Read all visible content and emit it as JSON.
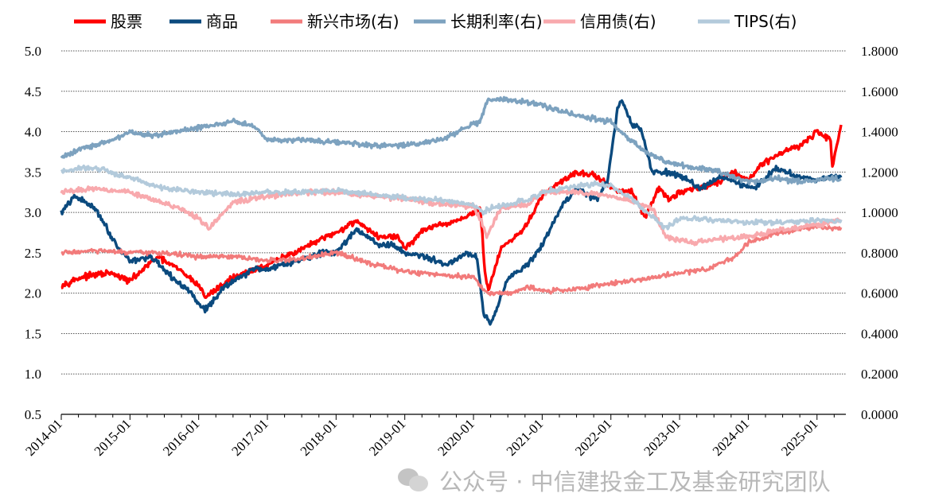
{
  "chart_data": {
    "type": "line",
    "title": "",
    "x_ticks": [
      "2014-01",
      "2015-01",
      "2016-01",
      "2017-01",
      "2018-01",
      "2019-01",
      "2020-01",
      "2021-01",
      "2022-01",
      "2023-01",
      "2024-01",
      "2025-01"
    ],
    "y_left": {
      "min": 0.5,
      "max": 5.0,
      "step": 0.5,
      "tick_labels": [
        "0.5",
        "1.0",
        "1.5",
        "2.0",
        "2.5",
        "3.0",
        "3.5",
        "4.0",
        "4.5",
        "5.0"
      ]
    },
    "y_right": {
      "min": 0.0,
      "max": 1.8,
      "step": 0.2,
      "tick_labels": [
        "0.0000",
        "0.2000",
        "0.4000",
        "0.6000",
        "0.8000",
        "1.0000",
        "1.2000",
        "1.4000",
        "1.6000",
        "1.8000"
      ]
    },
    "grid": "horizontal-dotted",
    "legend_position": "top",
    "series": [
      {
        "name": "股票",
        "axis": "left",
        "color": "#ff0000",
        "width": 3.4,
        "t": [
          2014.0,
          2014.3,
          2014.7,
          2015.0,
          2015.4,
          2015.7,
          2016.0,
          2016.1,
          2016.5,
          2017.0,
          2017.5,
          2018.0,
          2018.3,
          2018.6,
          2018.9,
          2019.0,
          2019.3,
          2019.6,
          2019.9,
          2020.1,
          2020.17,
          2020.22,
          2020.4,
          2020.7,
          2021.0,
          2021.3,
          2021.5,
          2021.8,
          2022.0,
          2022.3,
          2022.5,
          2022.7,
          2022.85,
          2023.0,
          2023.2,
          2023.5,
          2023.8,
          2024.0,
          2024.2,
          2024.5,
          2024.8,
          2025.0,
          2025.2,
          2025.22,
          2025.35
        ],
        "v": [
          2.1,
          2.2,
          2.25,
          2.15,
          2.45,
          2.3,
          2.1,
          1.95,
          2.2,
          2.35,
          2.55,
          2.75,
          2.9,
          2.7,
          2.7,
          2.55,
          2.8,
          2.85,
          2.95,
          3.05,
          2.2,
          2.05,
          2.55,
          2.75,
          3.2,
          3.4,
          3.5,
          3.45,
          3.3,
          3.25,
          2.95,
          3.3,
          3.15,
          3.25,
          3.3,
          3.35,
          3.5,
          3.4,
          3.6,
          3.75,
          3.85,
          4.0,
          3.9,
          3.55,
          4.1
        ]
      },
      {
        "name": "商品",
        "axis": "left",
        "color": "#0b4a7e",
        "width": 3.4,
        "t": [
          2014.0,
          2014.2,
          2014.5,
          2014.8,
          2015.0,
          2015.3,
          2015.6,
          2015.9,
          2016.0,
          2016.1,
          2016.4,
          2016.8,
          2017.0,
          2017.4,
          2017.8,
          2018.0,
          2018.3,
          2018.6,
          2018.8,
          2019.0,
          2019.3,
          2019.6,
          2019.9,
          2020.05,
          2020.15,
          2020.25,
          2020.5,
          2020.8,
          2021.0,
          2021.3,
          2021.5,
          2021.8,
          2021.95,
          2022.1,
          2022.15,
          2022.3,
          2022.45,
          2022.6,
          2022.8,
          2023.0,
          2023.3,
          2023.6,
          2023.9,
          2024.1,
          2024.4,
          2024.7,
          2025.0,
          2025.2,
          2025.35
        ],
        "v": [
          3.0,
          3.2,
          3.05,
          2.6,
          2.4,
          2.45,
          2.2,
          2.0,
          1.85,
          1.8,
          2.1,
          2.3,
          2.3,
          2.4,
          2.5,
          2.5,
          2.8,
          2.6,
          2.6,
          2.5,
          2.45,
          2.35,
          2.5,
          2.45,
          1.75,
          1.6,
          2.2,
          2.35,
          2.6,
          3.1,
          3.3,
          3.15,
          3.4,
          4.3,
          4.4,
          4.1,
          4.0,
          3.5,
          3.5,
          3.45,
          3.3,
          3.45,
          3.35,
          3.3,
          3.55,
          3.45,
          3.4,
          3.45,
          3.45
        ]
      },
      {
        "name": "新兴市场(右)",
        "axis": "right",
        "color": "#f27b7b",
        "width": 3.0,
        "t": [
          2014.0,
          2014.5,
          2015.0,
          2015.5,
          2016.0,
          2016.5,
          2017.0,
          2017.5,
          2018.0,
          2018.3,
          2018.8,
          2019.2,
          2019.6,
          2020.0,
          2020.2,
          2020.5,
          2020.8,
          2021.0,
          2021.5,
          2022.0,
          2022.5,
          2023.0,
          2023.4,
          2023.8,
          2024.0,
          2024.4,
          2024.8,
          2025.0,
          2025.35
        ],
        "v": [
          0.8,
          0.81,
          0.8,
          0.8,
          0.78,
          0.78,
          0.76,
          0.77,
          0.8,
          0.77,
          0.72,
          0.7,
          0.69,
          0.68,
          0.6,
          0.6,
          0.63,
          0.61,
          0.62,
          0.65,
          0.67,
          0.7,
          0.72,
          0.78,
          0.85,
          0.9,
          0.92,
          0.93,
          0.92
        ]
      },
      {
        "name": "长期利率(右)",
        "axis": "right",
        "color": "#7da2bf",
        "width": 3.4,
        "t": [
          2014.0,
          2014.3,
          2014.7,
          2015.0,
          2015.3,
          2015.7,
          2016.0,
          2016.5,
          2016.8,
          2017.0,
          2017.5,
          2018.0,
          2018.5,
          2018.9,
          2019.2,
          2019.6,
          2019.9,
          2020.1,
          2020.2,
          2020.4,
          2020.7,
          2021.0,
          2021.5,
          2022.0,
          2022.2,
          2022.5,
          2022.8,
          2023.2,
          2023.6,
          2024.0,
          2024.4,
          2024.8,
          2025.2,
          2025.35
        ],
        "v": [
          1.27,
          1.32,
          1.35,
          1.4,
          1.38,
          1.4,
          1.42,
          1.45,
          1.43,
          1.36,
          1.36,
          1.35,
          1.33,
          1.33,
          1.34,
          1.37,
          1.42,
          1.45,
          1.55,
          1.56,
          1.55,
          1.53,
          1.48,
          1.45,
          1.38,
          1.3,
          1.25,
          1.22,
          1.2,
          1.15,
          1.17,
          1.15,
          1.17,
          1.16
        ]
      },
      {
        "name": "信用债(右)",
        "axis": "right",
        "color": "#f8a9ad",
        "width": 3.4,
        "t": [
          2014.0,
          2014.5,
          2015.0,
          2015.5,
          2016.0,
          2016.15,
          2016.5,
          2017.0,
          2017.5,
          2018.0,
          2018.5,
          2019.0,
          2019.5,
          2020.0,
          2020.12,
          2020.2,
          2020.4,
          2020.8,
          2021.0,
          2021.5,
          2022.0,
          2022.3,
          2022.6,
          2022.8,
          2023.2,
          2023.6,
          2024.0,
          2024.4,
          2024.8,
          2025.0,
          2025.35
        ],
        "v": [
          1.1,
          1.12,
          1.1,
          1.05,
          0.97,
          0.92,
          1.05,
          1.08,
          1.1,
          1.1,
          1.08,
          1.07,
          1.04,
          1.03,
          0.95,
          0.88,
          1.02,
          1.04,
          1.1,
          1.1,
          1.08,
          1.06,
          1.02,
          0.88,
          0.85,
          0.87,
          0.88,
          0.91,
          0.93,
          0.94,
          0.96
        ]
      },
      {
        "name": "TIPS(右)",
        "axis": "right",
        "color": "#b3cadb",
        "width": 3.4,
        "t": [
          2014.0,
          2014.3,
          2014.5,
          2015.0,
          2015.5,
          2016.0,
          2016.5,
          2017.0,
          2017.5,
          2018.0,
          2018.5,
          2019.0,
          2019.5,
          2020.0,
          2020.15,
          2020.25,
          2020.5,
          2020.8,
          2021.0,
          2021.5,
          2021.8,
          2022.0,
          2022.3,
          2022.6,
          2022.8,
          2023.0,
          2023.5,
          2024.0,
          2024.5,
          2025.0,
          2025.35
        ],
        "v": [
          1.2,
          1.22,
          1.22,
          1.17,
          1.12,
          1.1,
          1.09,
          1.1,
          1.1,
          1.11,
          1.09,
          1.07,
          1.06,
          1.04,
          1.0,
          1.02,
          1.04,
          1.06,
          1.1,
          1.13,
          1.14,
          1.13,
          1.07,
          0.98,
          0.92,
          0.97,
          0.96,
          0.95,
          0.95,
          0.96,
          0.96
        ]
      }
    ]
  },
  "watermark": {
    "text": "公众号 · 中信建投金工及基金研究团队"
  }
}
